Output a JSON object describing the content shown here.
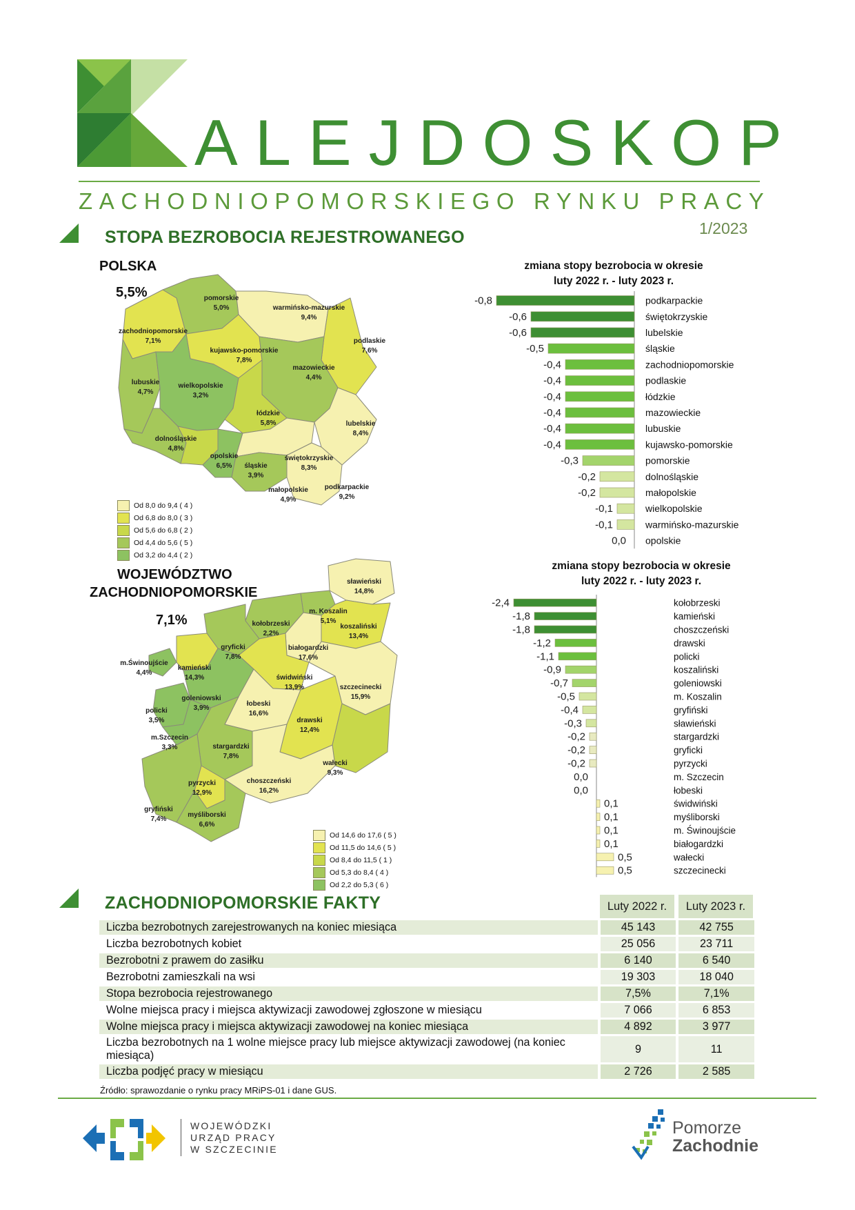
{
  "header": {
    "title": "ALEJDOSKOP",
    "subtitle": "ZACHODNIOPOMORSKIEGO RYNKU PRACY",
    "issue": "1/2023"
  },
  "section1": {
    "title": "STOPA BEZROBOCIA REJESTROWANEGO"
  },
  "poland_map": {
    "title": "POLSKA",
    "rate": "5,5%",
    "regions": [
      {
        "name": "pomorskie",
        "value": "5,0%"
      },
      {
        "name": "warmińsko-mazurskie",
        "value": "9,4%"
      },
      {
        "name": "zachodniopomorskie",
        "value": "7,1%"
      },
      {
        "name": "podlaskie",
        "value": "7,6%"
      },
      {
        "name": "kujawsko-pomorskie",
        "value": "7,8%"
      },
      {
        "name": "mazowieckie",
        "value": "4,4%"
      },
      {
        "name": "lubuskie",
        "value": "4,7%"
      },
      {
        "name": "wielkopolskie",
        "value": "3,2%"
      },
      {
        "name": "łódzkie",
        "value": "5,8%"
      },
      {
        "name": "lubelskie",
        "value": "8,4%"
      },
      {
        "name": "dolnośląskie",
        "value": "4,8%"
      },
      {
        "name": "opolskie",
        "value": "6,5%"
      },
      {
        "name": "śląskie",
        "value": "3,9%"
      },
      {
        "name": "świętokrzyskie",
        "value": "8,3%"
      },
      {
        "name": "małopolskie",
        "value": "4,9%"
      },
      {
        "name": "podkarpackie",
        "value": "9,2%"
      }
    ],
    "legend": [
      {
        "text": "Od  8,0 do  9,4 ( 4 )",
        "color": "#f6f1b0"
      },
      {
        "text": "Od  6,8 do  8,0 ( 3 )",
        "color": "#e2e350"
      },
      {
        "text": "Od  5,6 do  6,8 ( 2 )",
        "color": "#c8d84a"
      },
      {
        "text": "Od  4,4 do  5,6 ( 5 )",
        "color": "#a5c85a"
      },
      {
        "text": "Od  3,2 do  4,4 ( 2 )",
        "color": "#8dc261"
      }
    ]
  },
  "zp_map": {
    "title_line1": "WOJEWÓDZTWO",
    "title_line2": "ZACHODNIOPOMORSKIE",
    "rate": "7,1%",
    "regions": [
      {
        "name": "sławieński",
        "value": "14,8%"
      },
      {
        "name": "m. Koszalin",
        "value": "5,1%"
      },
      {
        "name": "kołobrzeski",
        "value": "2,2%"
      },
      {
        "name": "koszaliński",
        "value": "13,4%"
      },
      {
        "name": "gryficki",
        "value": "7,8%"
      },
      {
        "name": "białogardzki",
        "value": "17,6%"
      },
      {
        "name": "m.Świnoujście",
        "value": "4,4%"
      },
      {
        "name": "kamieński",
        "value": "14,3%"
      },
      {
        "name": "świdwiński",
        "value": "13,9%"
      },
      {
        "name": "szczecinecki",
        "value": "15,9%"
      },
      {
        "name": "goleniowski",
        "value": "3,9%"
      },
      {
        "name": "łobeski",
        "value": "16,6%"
      },
      {
        "name": "policki",
        "value": "3,5%"
      },
      {
        "name": "drawski",
        "value": "12,4%"
      },
      {
        "name": "m.Szczecin",
        "value": "3,3%"
      },
      {
        "name": "stargardzki",
        "value": "7,8%"
      },
      {
        "name": "wałecki",
        "value": "9,3%"
      },
      {
        "name": "pyrzycki",
        "value": "12,9%"
      },
      {
        "name": "choszczeński",
        "value": "16,2%"
      },
      {
        "name": "gryfiński",
        "value": "7,4%"
      },
      {
        "name": "myśliborski",
        "value": "6,6%"
      }
    ],
    "legend": [
      {
        "text": "Od  14,6 do  17,6 ( 5 )",
        "color": "#f6f1b0"
      },
      {
        "text": "Od  11,5 do  14,6 ( 5 )",
        "color": "#e2e350"
      },
      {
        "text": "Od  8,4 do  11,5 ( 1 )",
        "color": "#c8d84a"
      },
      {
        "text": "Od  5,3 do  8,4 ( 4 )",
        "color": "#a5c85a"
      },
      {
        "text": "Od  2,2 do  5,3 ( 6 )",
        "color": "#8dc261"
      }
    ]
  },
  "chart_data": [
    {
      "type": "bar",
      "orientation": "horizontal",
      "title_line1": "zmiana stopy bezrobocia w okresie",
      "title_line2": "luty 2022 r. - luty 2023 r.",
      "categories": [
        "podkarpackie",
        "świętokrzyskie",
        "lubelskie",
        "śląskie",
        "zachodniopomorskie",
        "podlaskie",
        "łódzkie",
        "mazowieckie",
        "lubuskie",
        "kujawsko-pomorskie",
        "pomorskie",
        "dolnośląskie",
        "małopolskie",
        "wielkopolskie",
        "warmińsko-mazurskie",
        "opolskie"
      ],
      "values": [
        -0.8,
        -0.6,
        -0.6,
        -0.5,
        -0.4,
        -0.4,
        -0.4,
        -0.4,
        -0.4,
        -0.4,
        -0.3,
        -0.2,
        -0.2,
        -0.1,
        -0.1,
        0.0
      ],
      "value_labels": [
        "-0,8",
        "-0,6",
        "-0,6",
        "-0,5",
        "-0,4",
        "-0,4",
        "-0,4",
        "-0,4",
        "-0,4",
        "-0,4",
        "-0,3",
        "-0,2",
        "-0,2",
        "-0,1",
        "-0,1",
        "0,0"
      ]
    },
    {
      "type": "bar",
      "orientation": "horizontal",
      "title_line1": "zmiana stopy bezrobocia w okresie",
      "title_line2": "luty 2022 r. - luty 2023 r.",
      "categories": [
        "kołobrzeski",
        "kamieński",
        "choszczeński",
        "drawski",
        "policki",
        "koszaliński",
        "goleniowski",
        "m. Koszalin",
        "gryfiński",
        "sławieński",
        "stargardzki",
        "gryficki",
        "pyrzycki",
        "m. Szczecin",
        "łobeski",
        "świdwiński",
        "myśliborski",
        "m. Świnoujście",
        "białogardzki",
        "wałecki",
        "szczecinecki"
      ],
      "values": [
        -2.4,
        -1.8,
        -1.8,
        -1.2,
        -1.1,
        -0.9,
        -0.7,
        -0.5,
        -0.4,
        -0.3,
        -0.2,
        -0.2,
        -0.2,
        0.0,
        0.0,
        0.1,
        0.1,
        0.1,
        0.1,
        0.5,
        0.5
      ],
      "value_labels": [
        "-2,4",
        "-1,8",
        "-1,8",
        "-1,2",
        "-1,1",
        "-0,9",
        "-0,7",
        "-0,5",
        "-0,4",
        "-0,3",
        "-0,2",
        "-0,2",
        "-0,2",
        "0,0",
        "0,0",
        "0,1",
        "0,1",
        "0,1",
        "0,1",
        "0,5",
        "0,5"
      ]
    }
  ],
  "section2": {
    "title": "ZACHODNIOPOMORSKIE FAKTY"
  },
  "facts": {
    "col1": "Luty 2022 r.",
    "col2": "Luty 2023 r.",
    "rows": [
      {
        "label": "Liczba bezrobotnych zarejestrowanych na koniec miesiąca",
        "v1": "45 143",
        "v2": "42 755"
      },
      {
        "label": "Liczba bezrobotnych kobiet",
        "v1": "25 056",
        "v2": "23 711"
      },
      {
        "label": "Bezrobotni z prawem do zasiłku",
        "v1": "6 140",
        "v2": "6 540"
      },
      {
        "label": "Bezrobotni zamieszkali na wsi",
        "v1": "19 303",
        "v2": "18 040"
      },
      {
        "label": "Stopa bezrobocia rejestrowanego",
        "v1": "7,5%",
        "v2": "7,1%"
      },
      {
        "label": "Wolne miejsca pracy i miejsca aktywizacji zawodowej zgłoszone w miesiącu",
        "v1": "7 066",
        "v2": "6 853"
      },
      {
        "label": "Wolne miejsca pracy i miejsca aktywizacji zawodowej na koniec miesiąca",
        "v1": "4 892",
        "v2": "3 977"
      },
      {
        "label": "Liczba bezrobotnych na 1 wolne miejsce pracy lub miejsce aktywizacji zawodowej (na koniec miesiąca)",
        "v1": "9",
        "v2": "11"
      },
      {
        "label": "Liczba podjęć pracy w miesiącu",
        "v1": "2 726",
        "v2": "2 585"
      }
    ],
    "source": "Źródło: sprawozdanie o rynku pracy MRiPS-01 i dane GUS."
  },
  "footer": {
    "wup_line1": "WOJEWÓDZKI",
    "wup_line2": "URZĄD PRACY",
    "wup_line3": "W  SZCZECINIE",
    "pz_line1": "Pomorze",
    "pz_line2": "Zachodnie"
  }
}
